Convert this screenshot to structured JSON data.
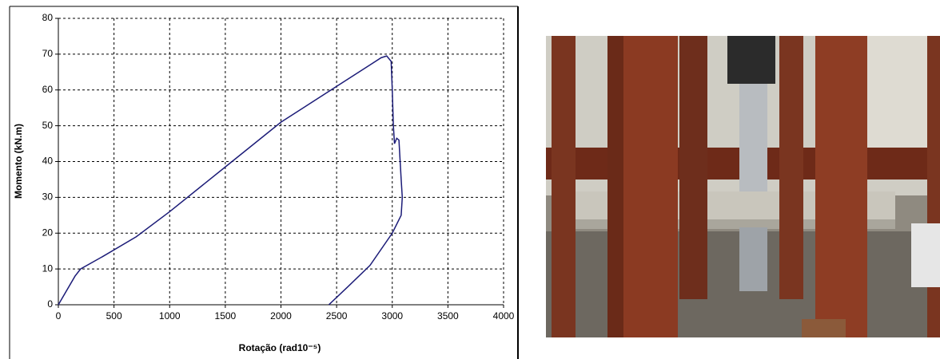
{
  "chart_data": {
    "type": "line",
    "x_label": "Rotação (rad10⁻⁵)",
    "y_label": "Momento (kN.m)",
    "x": [
      0,
      150,
      200,
      400,
      700,
      1000,
      1500,
      2000,
      2500,
      2800,
      2900,
      2950,
      2990,
      3000,
      3010,
      3020,
      3040,
      3060,
      3080,
      3090,
      3080,
      3000,
      2800,
      2600,
      2430
    ],
    "series": [
      {
        "color": "#1c1c78",
        "values": [
          0,
          8,
          10,
          13.5,
          19,
          26,
          38.5,
          51,
          61,
          67,
          69,
          69.5,
          68,
          60,
          50,
          45,
          46.5,
          46,
          35,
          30,
          25,
          20,
          11,
          5,
          0
        ]
      }
    ],
    "xlim": [
      0,
      4000
    ],
    "ylim": [
      0,
      80
    ],
    "xticks": [
      0,
      500,
      1000,
      1500,
      2000,
      2500,
      3000,
      3500,
      4000
    ],
    "yticks": [
      0,
      10,
      20,
      30,
      40,
      50,
      60,
      70,
      80
    ],
    "grid": true
  }
}
